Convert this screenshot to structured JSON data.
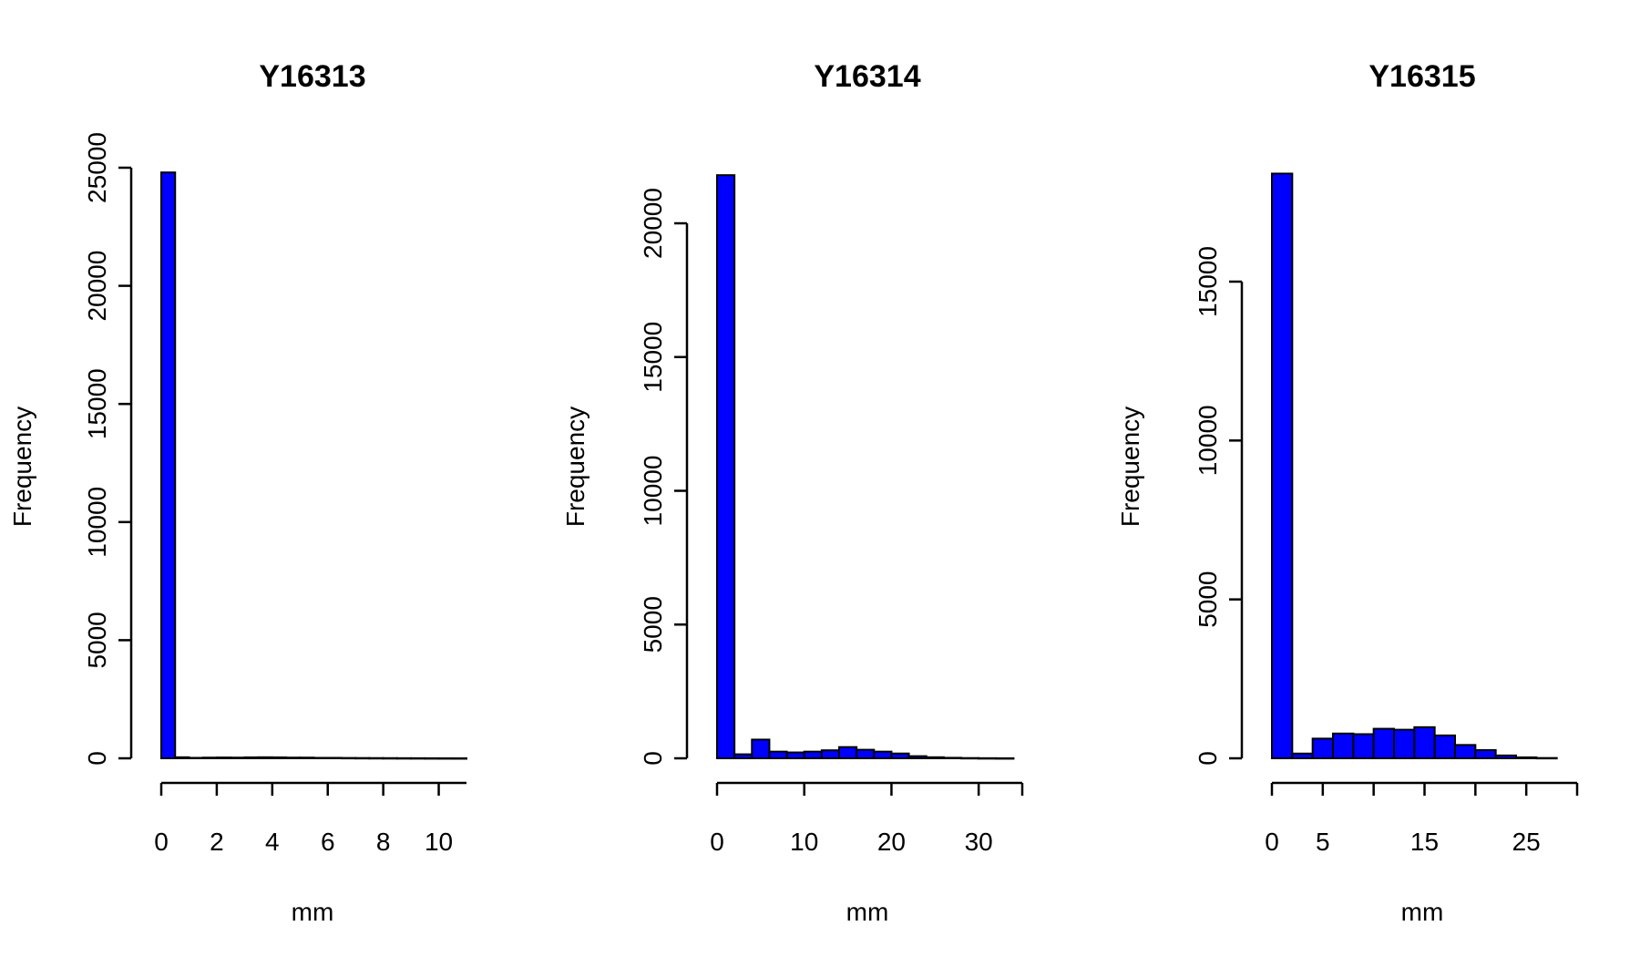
{
  "chart_data": [
    {
      "type": "bar",
      "title": "Y16313",
      "xlabel": "mm",
      "ylabel": "Frequency",
      "bar_color": "#0000ff",
      "bin_width": 0.5,
      "bins": [
        0,
        0.5,
        1,
        1.5,
        2,
        2.5,
        3,
        3.5,
        4,
        4.5,
        5,
        5.5,
        6,
        6.5,
        7,
        7.5,
        8,
        8.5,
        9,
        9.5,
        10,
        10.5
      ],
      "values": [
        24800,
        45,
        20,
        30,
        35,
        30,
        40,
        45,
        40,
        30,
        30,
        20,
        20,
        15,
        12,
        10,
        8,
        6,
        5,
        3,
        2,
        1
      ],
      "xticks": [
        0,
        2,
        4,
        6,
        8,
        10
      ],
      "xtick_labels": [
        "0",
        "2",
        "4",
        "6",
        "8",
        "10"
      ],
      "yticks": [
        0,
        5000,
        10000,
        15000,
        20000,
        25000
      ],
      "ytick_labels": [
        "0",
        "5000",
        "10000",
        "15000",
        "20000",
        "25000"
      ],
      "xlim": [
        0,
        11
      ],
      "ylim": [
        0,
        25000
      ]
    },
    {
      "type": "bar",
      "title": "Y16314",
      "xlabel": "mm",
      "ylabel": "Frequency",
      "bar_color": "#0000ff",
      "bin_width": 2,
      "bins": [
        0,
        2,
        4,
        6,
        8,
        10,
        12,
        14,
        16,
        18,
        20,
        22,
        24,
        26,
        28,
        30,
        32
      ],
      "values": [
        21800,
        150,
        700,
        250,
        220,
        250,
        300,
        420,
        320,
        250,
        180,
        80,
        40,
        20,
        10,
        5,
        2
      ],
      "xticks": [
        0,
        10,
        20,
        30
      ],
      "xtick_labels": [
        "0",
        "10",
        "20",
        "30"
      ],
      "yticks": [
        0,
        5000,
        10000,
        15000,
        20000
      ],
      "ytick_labels": [
        "0",
        "5000",
        "10000",
        "15000",
        "20000"
      ],
      "xlim": [
        0,
        35
      ],
      "ylim": [
        0,
        20000
      ]
    },
    {
      "type": "bar",
      "title": "Y16315",
      "xlabel": "mm",
      "ylabel": "Frequency",
      "bar_color": "#0000ff",
      "bin_width": 2,
      "bins": [
        0,
        2,
        4,
        6,
        8,
        10,
        12,
        14,
        16,
        18,
        20,
        22,
        24,
        26
      ],
      "values": [
        18400,
        150,
        620,
        780,
        760,
        930,
        900,
        980,
        720,
        420,
        260,
        90,
        30,
        10
      ],
      "xticks": [
        0,
        5,
        15,
        25
      ],
      "xtick_labels": [
        "0",
        "5",
        "15",
        "25"
      ],
      "yticks": [
        0,
        5000,
        10000,
        15000
      ],
      "ytick_labels": [
        "0",
        "5000",
        "10000",
        "15000"
      ],
      "xlim": [
        0,
        30
      ],
      "ylim": [
        0,
        15000
      ]
    }
  ]
}
